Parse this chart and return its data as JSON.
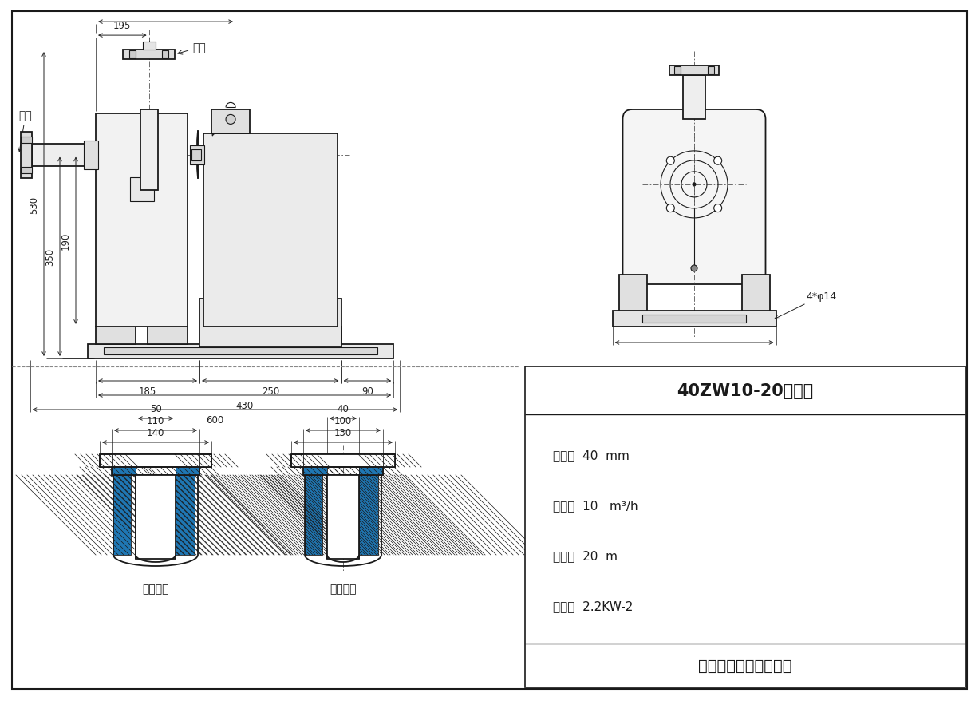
{
  "bg_color": "#ffffff",
  "line_color": "#1a1a1a",
  "dim_color": "#222222",
  "title": "40ZW10-20安装图",
  "specs_lines": [
    "口径：  40  mm",
    "流量：  10   m³/h",
    "扬程：  20  m",
    "功率：  2.2KW-2"
  ],
  "company": "上海博禺泵业有限公司",
  "label_inlet": "进口",
  "label_outlet": "出口",
  "label_flange_in": "进口法兰",
  "label_flange_out": "出口法兰",
  "label_bolt": "4*φ14"
}
